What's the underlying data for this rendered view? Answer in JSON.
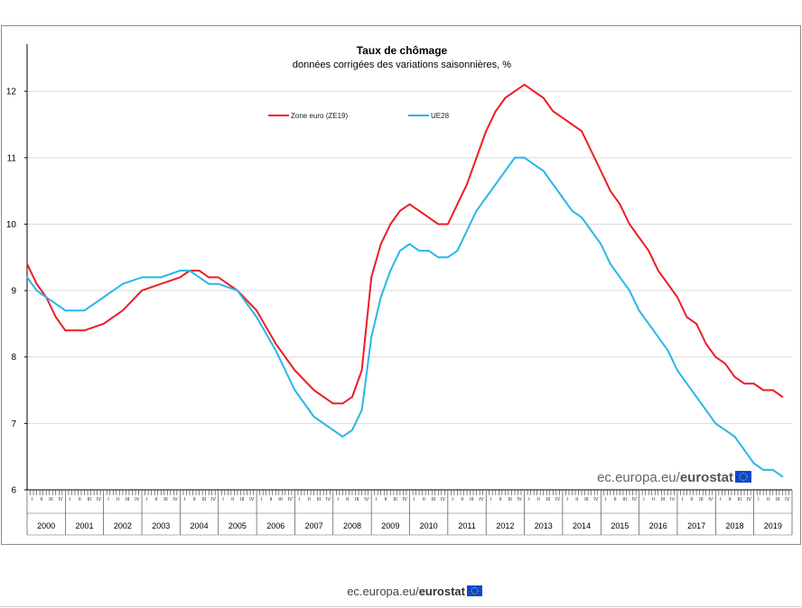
{
  "chart_data": {
    "type": "line",
    "title": "Taux de chômage",
    "subtitle": "données corrigées des variations saisonnières, %",
    "xlabel": "",
    "ylabel": "",
    "ylim": [
      6,
      12.6
    ],
    "y_ticks": [
      "6",
      "7",
      "8",
      "9",
      "10",
      "11",
      "12"
    ],
    "years": [
      "2000",
      "2001",
      "2002",
      "2003",
      "2004",
      "2005",
      "2006",
      "2007",
      "2008",
      "2009",
      "2010",
      "2011",
      "2012",
      "2013",
      "2014",
      "2015",
      "2016",
      "2017",
      "2018",
      "2019"
    ],
    "quarter_labels": [
      "I",
      "II",
      "III",
      "IV"
    ],
    "grid": true,
    "legend_position": "top-left",
    "series": [
      {
        "name": "Zone euro (ZE19)",
        "color": "#ee1c25",
        "x": [
          2000.0,
          2000.25,
          2000.5,
          2000.75,
          2001.0,
          2001.5,
          2002.0,
          2002.5,
          2003.0,
          2003.5,
          2004.0,
          2004.25,
          2004.5,
          2004.75,
          2005.0,
          2005.5,
          2006.0,
          2006.5,
          2007.0,
          2007.5,
          2008.0,
          2008.25,
          2008.5,
          2008.75,
          2009.0,
          2009.25,
          2009.5,
          2009.75,
          2010.0,
          2010.25,
          2010.5,
          2010.75,
          2011.0,
          2011.25,
          2011.5,
          2011.75,
          2012.0,
          2012.25,
          2012.5,
          2012.75,
          2013.0,
          2013.25,
          2013.5,
          2013.75,
          2014.0,
          2014.25,
          2014.5,
          2014.75,
          2015.0,
          2015.25,
          2015.5,
          2015.75,
          2016.0,
          2016.25,
          2016.5,
          2016.75,
          2017.0,
          2017.25,
          2017.5,
          2017.75,
          2018.0,
          2018.25,
          2018.5,
          2018.75,
          2019.0,
          2019.25,
          2019.5,
          2019.75
        ],
        "values": [
          9.4,
          9.1,
          8.9,
          8.6,
          8.4,
          8.4,
          8.5,
          8.7,
          9.0,
          9.1,
          9.2,
          9.3,
          9.3,
          9.2,
          9.2,
          9.0,
          8.7,
          8.2,
          7.8,
          7.5,
          7.3,
          7.3,
          7.4,
          7.8,
          9.2,
          9.7,
          10.0,
          10.2,
          10.3,
          10.2,
          10.1,
          10.0,
          10.0,
          10.3,
          10.6,
          11.0,
          11.4,
          11.7,
          11.9,
          12.0,
          12.1,
          12.0,
          11.9,
          11.7,
          11.6,
          11.5,
          11.4,
          11.1,
          10.8,
          10.5,
          10.3,
          10.0,
          9.8,
          9.6,
          9.3,
          9.1,
          8.9,
          8.6,
          8.5,
          8.2,
          8.0,
          7.9,
          7.7,
          7.6,
          7.6,
          7.5,
          7.5,
          7.4
        ]
      },
      {
        "name": "UE28",
        "color": "#29b6e8",
        "x": [
          2000.0,
          2000.25,
          2000.5,
          2000.75,
          2001.0,
          2001.5,
          2002.0,
          2002.5,
          2003.0,
          2003.5,
          2004.0,
          2004.25,
          2004.5,
          2004.75,
          2005.0,
          2005.5,
          2006.0,
          2006.5,
          2007.0,
          2007.5,
          2008.0,
          2008.25,
          2008.5,
          2008.75,
          2009.0,
          2009.25,
          2009.5,
          2009.75,
          2010.0,
          2010.25,
          2010.5,
          2010.75,
          2011.0,
          2011.25,
          2011.5,
          2011.75,
          2012.0,
          2012.25,
          2012.5,
          2012.75,
          2013.0,
          2013.25,
          2013.5,
          2013.75,
          2014.0,
          2014.25,
          2014.5,
          2014.75,
          2015.0,
          2015.25,
          2015.5,
          2015.75,
          2016.0,
          2016.25,
          2016.5,
          2016.75,
          2017.0,
          2017.25,
          2017.5,
          2017.75,
          2018.0,
          2018.25,
          2018.5,
          2018.75,
          2019.0,
          2019.25,
          2019.5,
          2019.75
        ],
        "values": [
          9.2,
          9.0,
          8.9,
          8.8,
          8.7,
          8.7,
          8.9,
          9.1,
          9.2,
          9.2,
          9.3,
          9.3,
          9.2,
          9.1,
          9.1,
          9.0,
          8.6,
          8.1,
          7.5,
          7.1,
          6.9,
          6.8,
          6.9,
          7.2,
          8.3,
          8.9,
          9.3,
          9.6,
          9.7,
          9.6,
          9.6,
          9.5,
          9.5,
          9.6,
          9.9,
          10.2,
          10.4,
          10.6,
          10.8,
          11.0,
          11.0,
          10.9,
          10.8,
          10.6,
          10.4,
          10.2,
          10.1,
          9.9,
          9.7,
          9.4,
          9.2,
          9.0,
          8.7,
          8.5,
          8.3,
          8.1,
          7.8,
          7.6,
          7.4,
          7.2,
          7.0,
          6.9,
          6.8,
          6.6,
          6.4,
          6.3,
          6.3,
          6.2
        ]
      }
    ]
  },
  "watermark": {
    "prefix": "ec.europa.eu/",
    "brand": "eurostat"
  },
  "footer": {
    "prefix": "ec.europa.eu/",
    "brand": "eurostat"
  },
  "colors": {
    "grid": "#d9d9d9",
    "axis": "#000000",
    "frame": "#8c8c8c",
    "eu_flag": "#0e47cb",
    "eu_star": "#ffdd00"
  }
}
